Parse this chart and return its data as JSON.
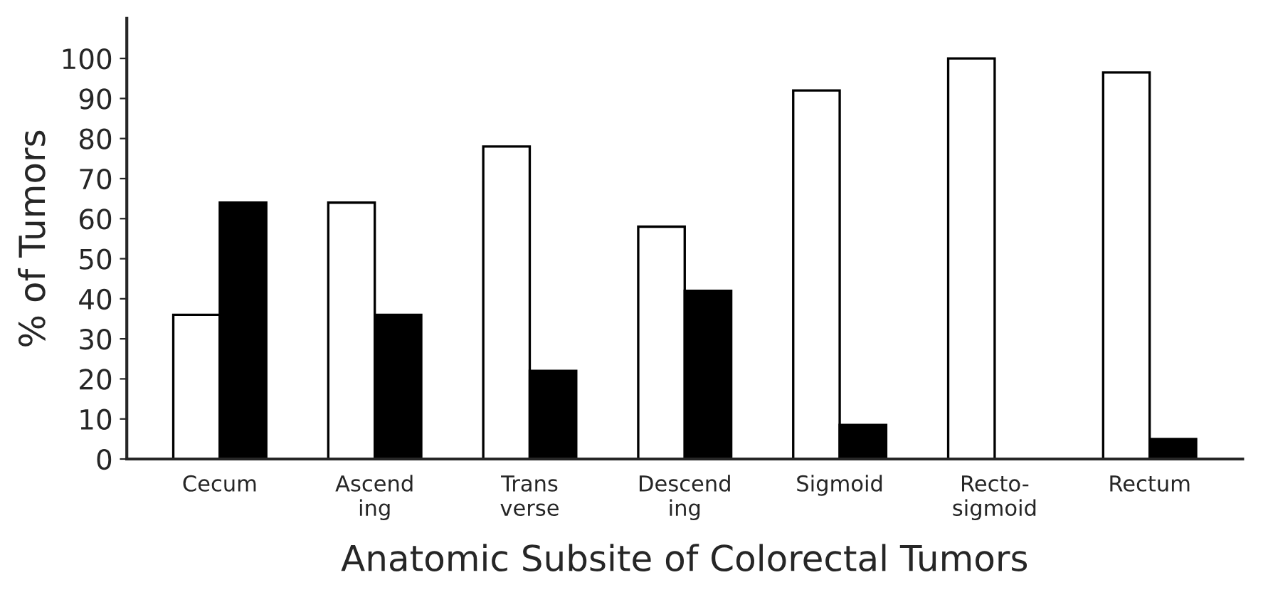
{
  "chart_data": {
    "type": "bar",
    "xlabel": "Anatomic Subsite of Colorectal Tumors",
    "ylabel": "% of Tumors",
    "categories": [
      "Cecum",
      "Ascend\ning",
      "Trans\nverse",
      "Descend\ning",
      "Sigmoid",
      "Recto-\nsigmoid",
      "Rectum"
    ],
    "series": [
      {
        "color": "#ffffff",
        "values": [
          36,
          64,
          78,
          58,
          92,
          100,
          96.5
        ]
      },
      {
        "color": "#000000",
        "values": [
          64,
          36,
          22,
          42,
          8.5,
          0,
          5
        ]
      }
    ],
    "ylim": [
      0,
      110
    ],
    "yticks": [
      0,
      10,
      20,
      30,
      40,
      50,
      60,
      70,
      80,
      90,
      100
    ],
    "grid": false,
    "legend": false
  }
}
